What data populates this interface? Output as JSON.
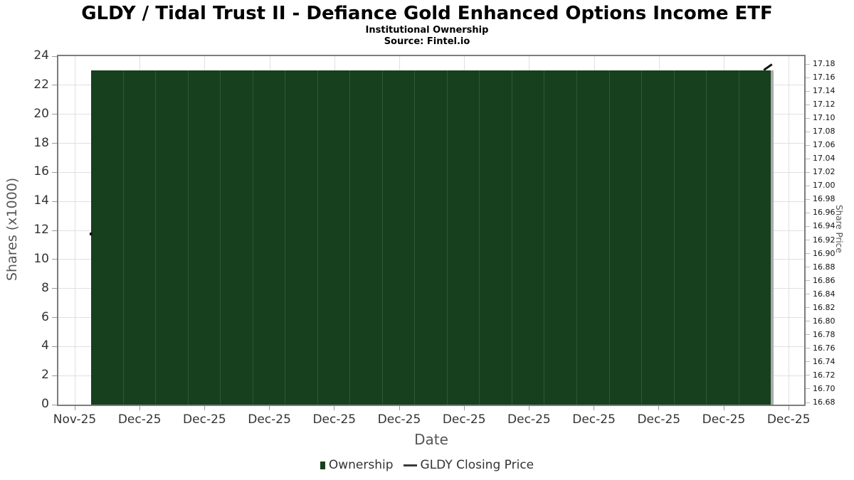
{
  "header": {
    "title": "GLDY / Tidal Trust II - Defiance Gold Enhanced Options Income ETF",
    "subtitle": "Institutional Ownership",
    "source": "Source: Fintel.io"
  },
  "chart_data": {
    "type": "bar",
    "title": "GLDY / Tidal Trust II - Defiance Gold Enhanced Options Income ETF",
    "subtitle": "Institutional Ownership",
    "source": "Source: Fintel.io",
    "grid": true,
    "legend_position": "bottom",
    "x_axis": {
      "label": "Date",
      "tick_labels": [
        "Nov-25",
        "Dec-25",
        "Dec-25",
        "Dec-25",
        "Dec-25",
        "Dec-25",
        "Dec-25",
        "Dec-25",
        "Dec-25",
        "Dec-25",
        "Dec-25",
        "Dec-25"
      ]
    },
    "y_axis_left": {
      "label": "Shares (x1000)",
      "range": [
        0,
        24
      ],
      "tick_step": 2,
      "ticks": [
        0,
        2,
        4,
        6,
        8,
        10,
        12,
        14,
        16,
        18,
        20,
        22,
        24
      ]
    },
    "y_axis_right": {
      "label": "Share Price",
      "range": [
        16.68,
        17.18
      ],
      "tick_step": 0.02,
      "tick_labels_top_to_bottom": [
        "17.18",
        "17.16",
        "17.14",
        "17.12",
        "17.10",
        "17.08",
        "17.06",
        "17.04",
        "17.02",
        "17.00",
        "16.98",
        "16.96",
        "16.94",
        "16.92",
        "16.90",
        "16.88",
        "16.86",
        "16.84",
        "16.82",
        "16.80",
        "16.78",
        "16.76",
        "16.74",
        "16.72",
        "16.70",
        "16.68"
      ]
    },
    "series": [
      {
        "name": "Ownership",
        "type": "bar",
        "axis": "left",
        "color": "#16401e",
        "divider_color": "#2d5a37",
        "values": [
          23,
          23,
          23,
          23,
          23,
          23,
          23,
          23,
          23,
          23,
          23,
          23,
          23,
          23,
          23,
          23,
          23,
          23,
          23,
          23,
          23
        ]
      },
      {
        "name": "GLDY Closing Price",
        "type": "line",
        "axis": "right",
        "color": "#161616",
        "visible_points": [
          {
            "x": "start",
            "price": 16.93
          },
          {
            "x": "end",
            "price": 17.17
          }
        ],
        "note": "line hidden behind bars except endpoints"
      }
    ]
  },
  "legend": {
    "items": [
      {
        "label": "Ownership",
        "marker": "square",
        "color": "#16401e"
      },
      {
        "label": "GLDY Closing Price",
        "marker": "line",
        "color": "#3a3a3a"
      }
    ]
  }
}
